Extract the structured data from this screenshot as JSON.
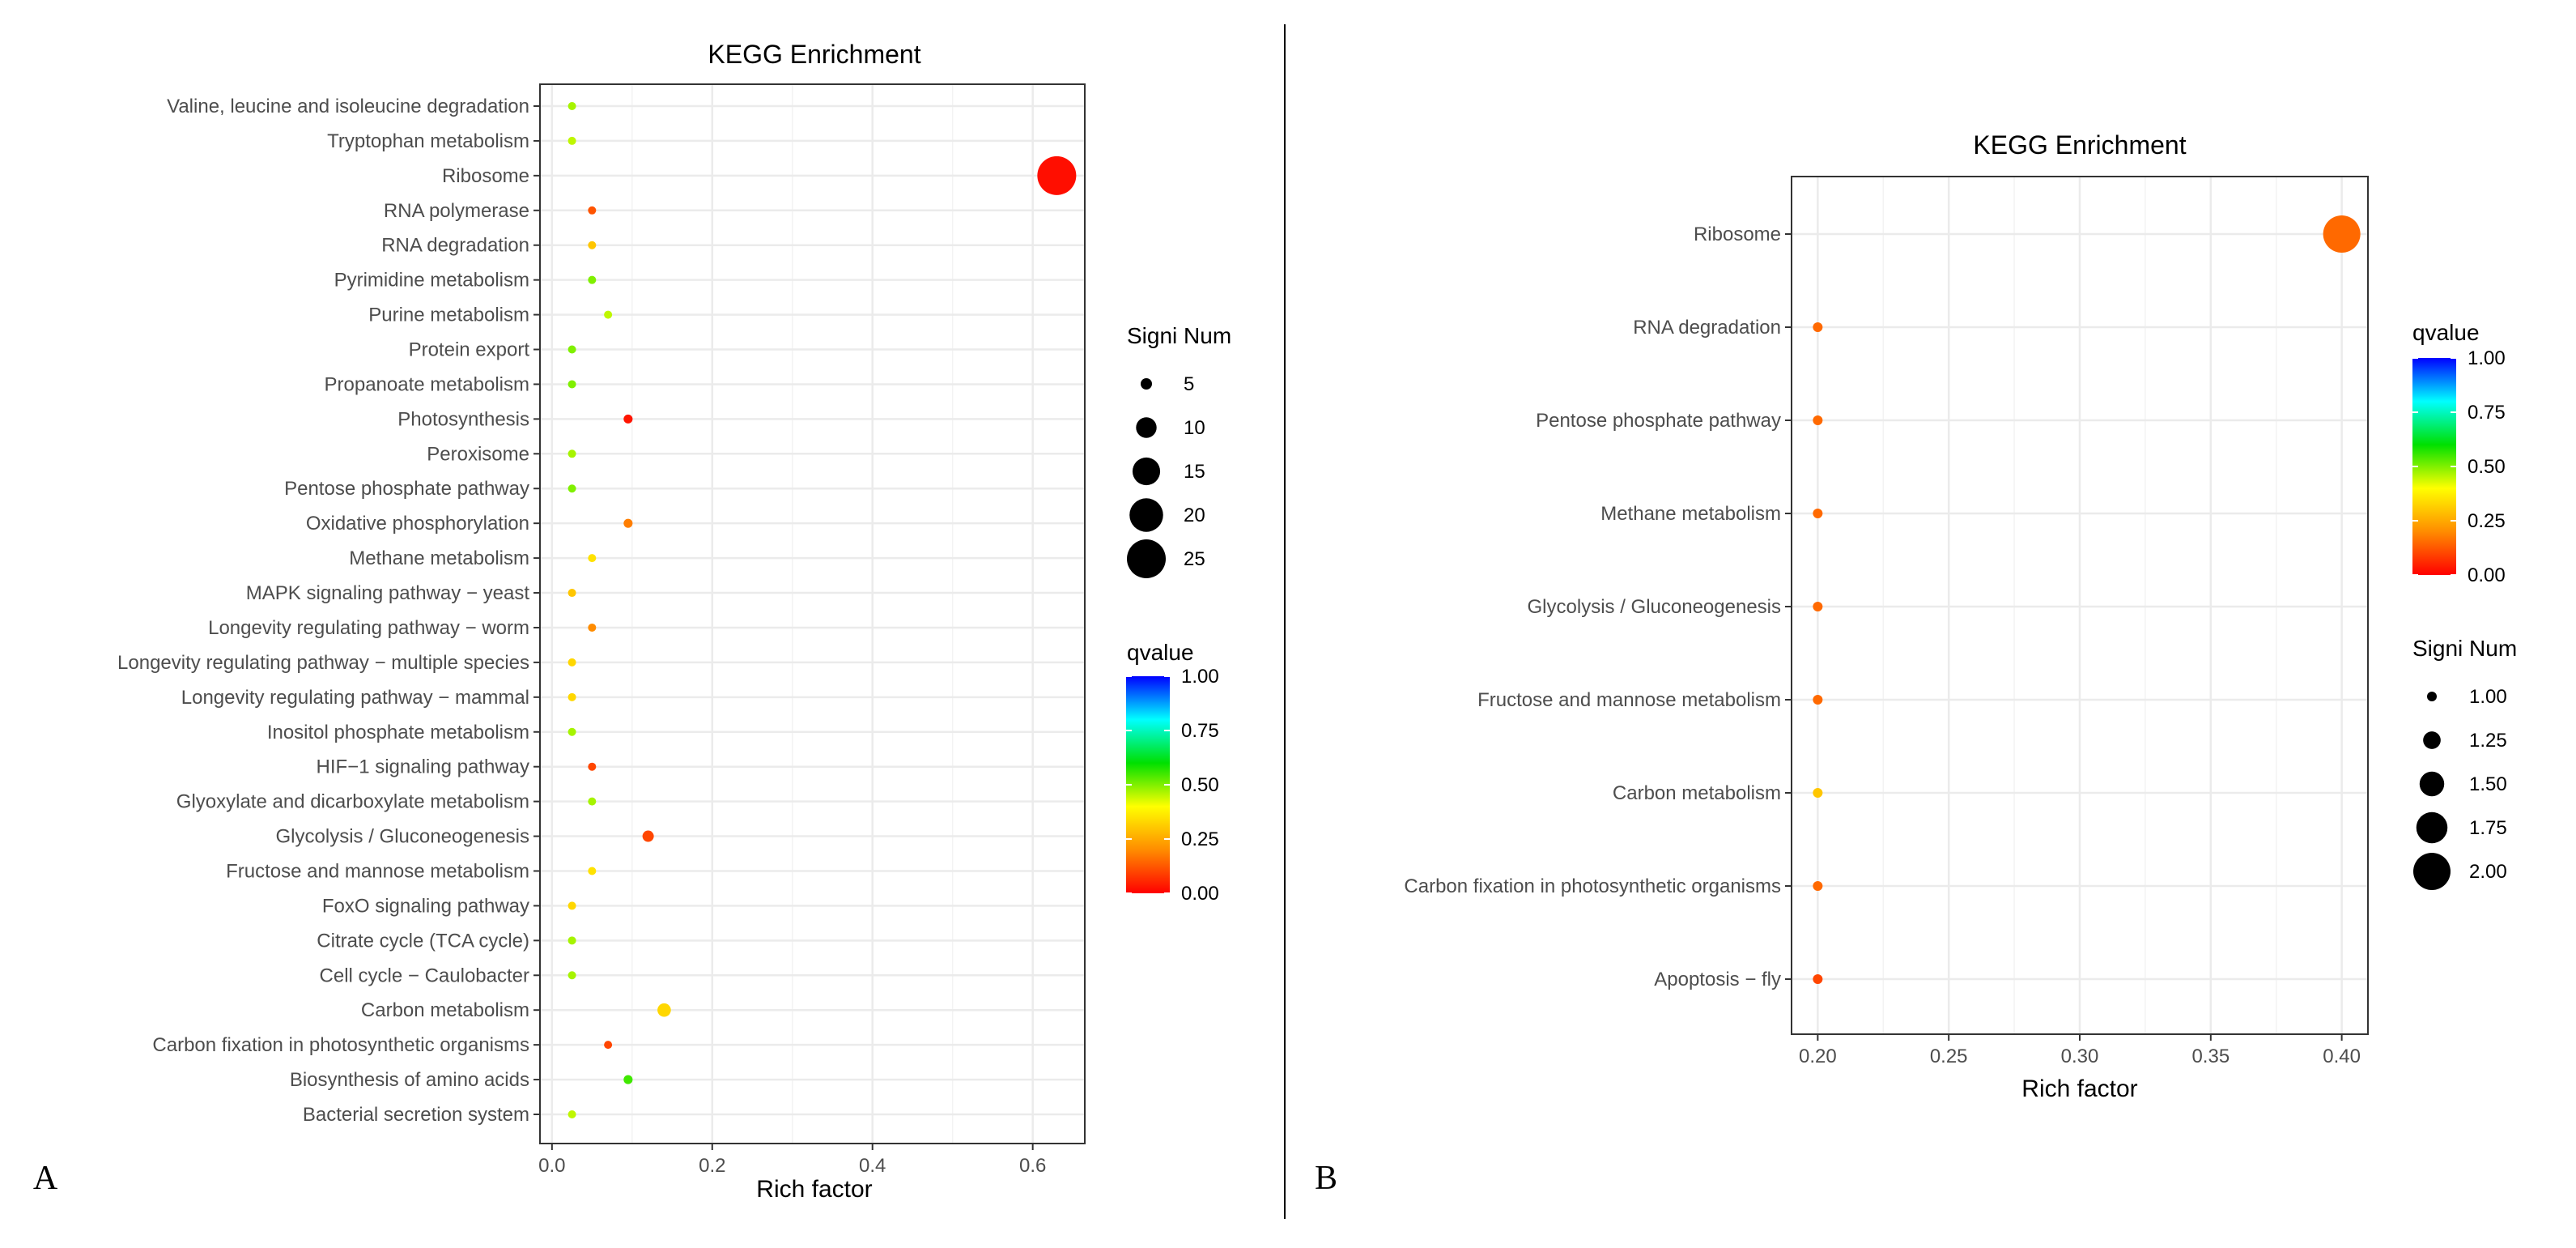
{
  "panels": [
    {
      "panel_label": "A",
      "chart_data": {
        "type": "scatter",
        "title": "KEGG Enrichment",
        "xlabel": "Rich factor",
        "ylabel": "",
        "xlim": [
          -0.015,
          0.665
        ],
        "xticks": [
          0.0,
          0.2,
          0.4,
          0.6
        ],
        "xtick_labels": [
          "0.0",
          "0.2",
          "0.4",
          "0.6"
        ],
        "grid": true,
        "categories": [
          "Valine, leucine and isoleucine degradation",
          "Tryptophan metabolism",
          "Ribosome",
          "RNA polymerase",
          "RNA degradation",
          "Pyrimidine metabolism",
          "Purine metabolism",
          "Protein export",
          "Propanoate metabolism",
          "Photosynthesis",
          "Peroxisome",
          "Pentose phosphate pathway",
          "Oxidative phosphorylation",
          "Methane metabolism",
          "MAPK signaling pathway − yeast",
          "Longevity regulating pathway − worm",
          "Longevity regulating pathway − multiple species",
          "Longevity regulating pathway − mammal",
          "Inositol phosphate metabolism",
          "HIF−1 signaling pathway",
          "Glyoxylate and dicarboxylate metabolism",
          "Glycolysis / Gluconeogenesis",
          "Fructose and mannose metabolism",
          "FoxO signaling pathway",
          "Citrate cycle (TCA cycle)",
          "Cell cycle − Caulobacter",
          "Carbon metabolism",
          "Carbon fixation in photosynthetic organisms",
          "Biosynthesis of amino acids",
          "Bacterial secretion system"
        ],
        "rich_factor": [
          0.025,
          0.025,
          0.63,
          0.05,
          0.05,
          0.05,
          0.07,
          0.025,
          0.025,
          0.095,
          0.025,
          0.025,
          0.095,
          0.05,
          0.025,
          0.05,
          0.025,
          0.025,
          0.025,
          0.05,
          0.05,
          0.12,
          0.05,
          0.025,
          0.025,
          0.025,
          0.14,
          0.07,
          0.095,
          0.025
        ],
        "signi_num": [
          1,
          1,
          25,
          2,
          2,
          2,
          3,
          1,
          1,
          4,
          1,
          1,
          4,
          2,
          1,
          2,
          1,
          1,
          1,
          2,
          2,
          5,
          2,
          1,
          1,
          1,
          6,
          3,
          4,
          1
        ],
        "qvalue": [
          0.47,
          0.45,
          0.02,
          0.12,
          0.3,
          0.5,
          0.45,
          0.5,
          0.5,
          0.03,
          0.47,
          0.5,
          0.18,
          0.35,
          0.3,
          0.2,
          0.33,
          0.33,
          0.47,
          0.1,
          0.47,
          0.1,
          0.35,
          0.33,
          0.47,
          0.47,
          0.33,
          0.1,
          0.55,
          0.45
        ],
        "size_legend": {
          "title": "Signi Num",
          "values": [
            5,
            10,
            15,
            20,
            25
          ],
          "labels": [
            "5",
            "10",
            "15",
            "20",
            "25"
          ]
        },
        "color_legend": {
          "title": "qvalue",
          "range": [
            0.0,
            1.0
          ],
          "ticks": [
            1.0,
            0.75,
            0.5,
            0.25,
            0.0
          ],
          "labels": [
            "1.00",
            "0.75",
            "0.50",
            "0.25",
            "0.00"
          ]
        }
      }
    },
    {
      "panel_label": "B",
      "chart_data": {
        "type": "scatter",
        "title": "KEGG Enrichment",
        "xlabel": "Rich factor",
        "ylabel": "",
        "xlim": [
          0.19,
          0.41
        ],
        "xticks": [
          0.2,
          0.25,
          0.3,
          0.35,
          0.4
        ],
        "xtick_labels": [
          "0.20",
          "0.25",
          "0.30",
          "0.35",
          "0.40"
        ],
        "grid": true,
        "categories": [
          "Ribosome",
          "RNA degradation",
          "Pentose phosphate pathway",
          "Methane metabolism",
          "Glycolysis / Gluconeogenesis",
          "Fructose and mannose metabolism",
          "Carbon metabolism",
          "Carbon fixation in photosynthetic organisms",
          "Apoptosis − fly"
        ],
        "rich_factor": [
          0.4,
          0.2,
          0.2,
          0.2,
          0.2,
          0.2,
          0.2,
          0.2,
          0.2
        ],
        "signi_num": [
          2,
          1,
          1,
          1,
          1,
          1,
          1,
          1,
          1
        ],
        "qvalue": [
          0.15,
          0.15,
          0.15,
          0.15,
          0.15,
          0.15,
          0.3,
          0.15,
          0.1
        ],
        "color_legend": {
          "title": "qvalue",
          "range": [
            0.0,
            1.0
          ],
          "ticks": [
            1.0,
            0.75,
            0.5,
            0.25,
            0.0
          ],
          "labels": [
            "1.00",
            "0.75",
            "0.50",
            "0.25",
            "0.00"
          ]
        },
        "size_legend": {
          "title": "Signi Num",
          "values": [
            1.0,
            1.25,
            1.5,
            1.75,
            2.0
          ],
          "labels": [
            "1.00",
            "1.25",
            "1.50",
            "1.75",
            "2.00"
          ]
        }
      }
    }
  ],
  "colors": {
    "gradient": [
      "#ff0000",
      "#ff8c00",
      "#ffff00",
      "#00e000",
      "#00ffff",
      "#0000ff"
    ],
    "panel_bg": "#ffffff",
    "grid": "#ebebeb",
    "divider": "#000000"
  }
}
